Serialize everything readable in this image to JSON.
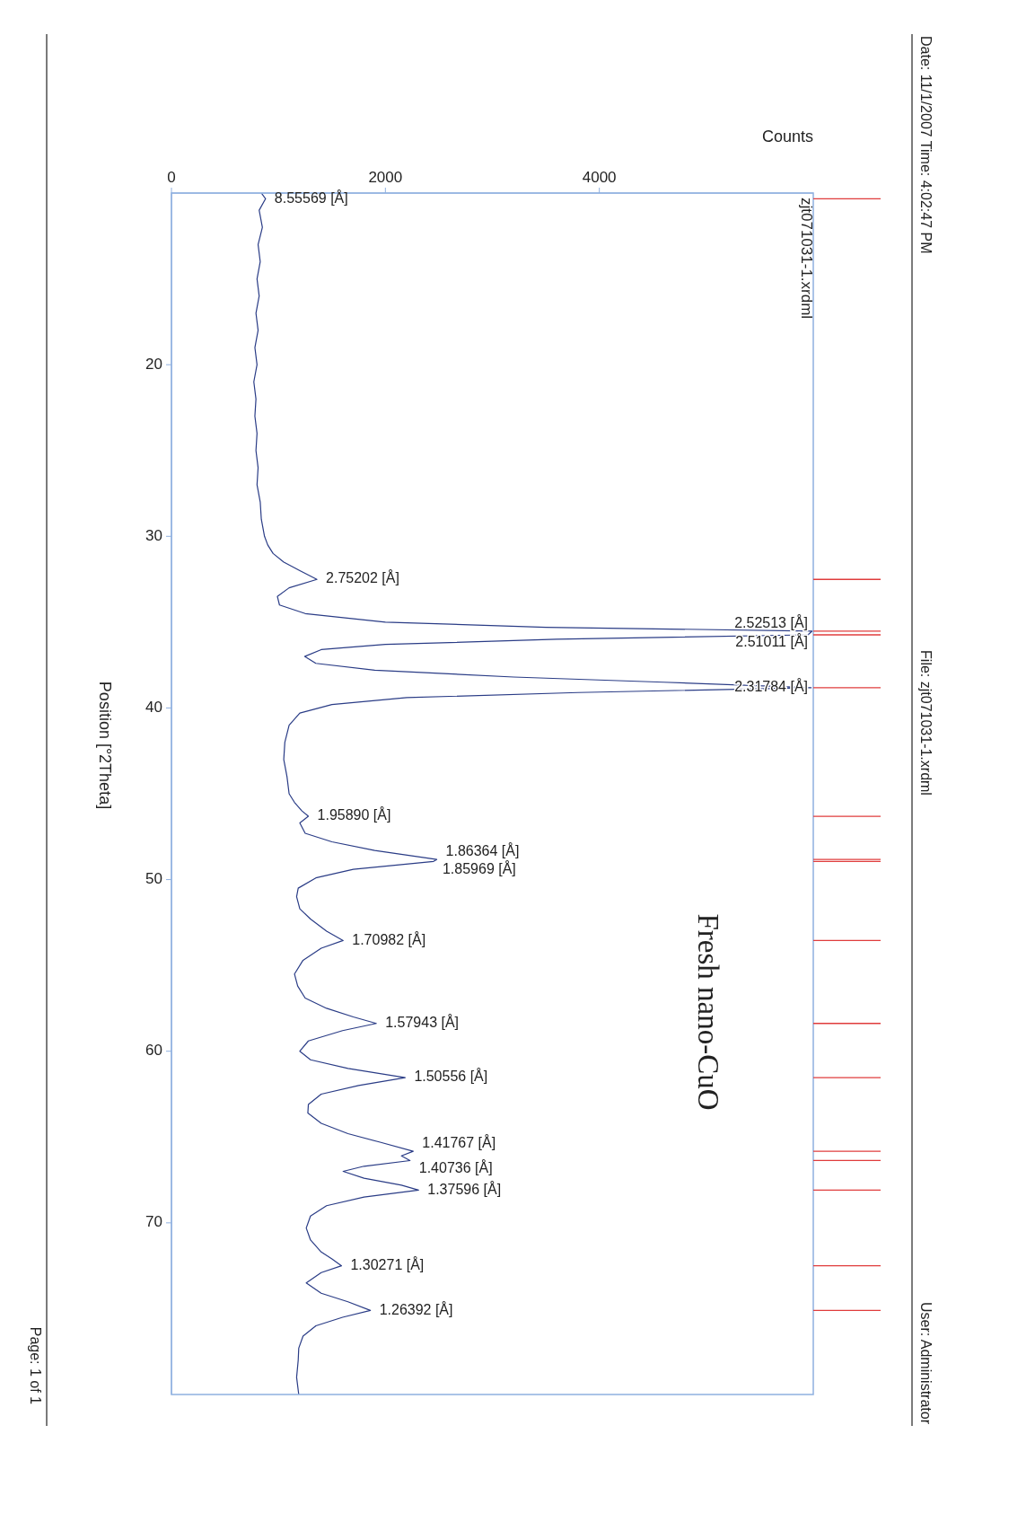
{
  "chart_data": {
    "type": "line",
    "xlabel": "Counts",
    "ylabel": "Position [°2Theta]",
    "xlim": [
      0,
      6000
    ],
    "xticks": [
      0,
      2000,
      4000
    ],
    "ylim": [
      80,
      10
    ],
    "yticks": [
      20,
      30,
      40,
      50,
      60,
      70
    ],
    "grid": false,
    "legend": false,
    "marker": "none",
    "line_style": "solid",
    "x": [
      840,
      880,
      820,
      850,
      810,
      830,
      800,
      820,
      790,
      810,
      780,
      800,
      770,
      790,
      780,
      800,
      790,
      810,
      800,
      830,
      840,
      870,
      900,
      950,
      1050,
      1200,
      1360,
      1100,
      990,
      1010,
      1250,
      2000,
      3500,
      5990,
      5950,
      3600,
      2000,
      1400,
      1245,
      1350,
      1900,
      3200,
      4600,
      5980,
      3800,
      2200,
      1500,
      1200,
      1100,
      1060,
      1050,
      1080,
      1100,
      1150,
      1220,
      1280,
      1200,
      1250,
      1500,
      1900,
      2480,
      2450,
      1700,
      1350,
      1185,
      1170,
      1200,
      1300,
      1450,
      1605,
      1400,
      1230,
      1150,
      1180,
      1250,
      1450,
      1700,
      1915,
      1600,
      1280,
      1200,
      1300,
      1650,
      2185,
      1750,
      1400,
      1280,
      1275,
      1400,
      1650,
      1950,
      2260,
      2150,
      2230,
      1800,
      1605,
      1800,
      2150,
      2310,
      1800,
      1450,
      1300,
      1260,
      1300,
      1400,
      1500,
      1590,
      1400,
      1260,
      1400,
      1650,
      1860,
      1600,
      1350,
      1230,
      1190,
      1185,
      1170,
      1190
    ],
    "series": [
      {
        "color": "#2a3c86",
        "values": [
          10,
          10.33,
          11,
          12,
          13,
          14,
          15,
          16,
          17,
          18,
          19,
          20,
          21,
          22,
          23,
          24,
          25,
          26,
          27,
          28,
          29,
          30,
          30.5,
          31,
          31.5,
          32,
          32.51,
          33,
          33.5,
          34,
          34.5,
          35,
          35.3,
          35.52,
          35.74,
          36,
          36.3,
          36.6,
          37,
          37.4,
          37.8,
          38.2,
          38.5,
          38.82,
          39.1,
          39.4,
          39.8,
          40.3,
          41,
          42,
          43,
          44,
          45,
          45.5,
          46,
          46.31,
          46.7,
          47.3,
          47.8,
          48.3,
          48.83,
          48.94,
          49.4,
          49.9,
          50.5,
          51,
          51.7,
          52.3,
          53,
          53.55,
          54,
          54.7,
          55.5,
          56.2,
          56.9,
          57.5,
          58,
          58.38,
          58.8,
          59.4,
          60,
          60.5,
          61,
          61.54,
          62,
          62.5,
          63.1,
          63.6,
          64.2,
          64.8,
          65.3,
          65.83,
          66.1,
          66.37,
          66.7,
          67,
          67.4,
          67.8,
          68.09,
          68.5,
          69,
          69.6,
          70.3,
          71,
          71.7,
          72.1,
          72.5,
          72.9,
          73.5,
          74.1,
          74.6,
          75.1,
          75.5,
          76,
          76.6,
          77.3,
          78,
          79,
          80
        ]
      }
    ],
    "annotations": [
      "Date: 11/1/2007 Time: 4:02:47 PM",
      "File: zjt071031-1.xrdml",
      "User: Administrator",
      "Page: 1 of 1",
      "zjt071031-1.xrdml",
      "Fresh nano-CuO",
      {
        "text": "8.55569 [Å]",
        "x": 880,
        "y": 10.33
      },
      {
        "text": "2.75202 [Å]",
        "x": 1360,
        "y": 32.51
      },
      {
        "text": "2.52513 [Å]",
        "x": 5990,
        "y": 35.52
      },
      {
        "text": "2.51011 [Å]",
        "x": 5950,
        "y": 35.74
      },
      {
        "text": "2.31784 [Å]",
        "x": 5980,
        "y": 38.82
      },
      {
        "text": "1.95890 [Å]",
        "x": 1280,
        "y": 46.31
      },
      {
        "text": "1.86364 [Å]",
        "x": 2480,
        "y": 48.83
      },
      {
        "text": "1.85969 [Å]",
        "x": 2450,
        "y": 48.94
      },
      {
        "text": "1.70982 [Å]",
        "x": 1605,
        "y": 53.55
      },
      {
        "text": "1.57943 [Å]",
        "x": 1915,
        "y": 58.38
      },
      {
        "text": "1.50556 [Å]",
        "x": 2185,
        "y": 61.54
      },
      {
        "text": "1.41767 [Å]",
        "x": 2260,
        "y": 65.83
      },
      {
        "text": "1.40736 [Å]",
        "x": 2230,
        "y": 66.37
      },
      {
        "text": "1.37596 [Å]",
        "x": 2310,
        "y": 68.09
      },
      {
        "text": "1.30271 [Å]",
        "x": 1590,
        "y": 72.5
      },
      {
        "text": "1.26392 [Å]",
        "x": 1860,
        "y": 75.1
      }
    ]
  }
}
